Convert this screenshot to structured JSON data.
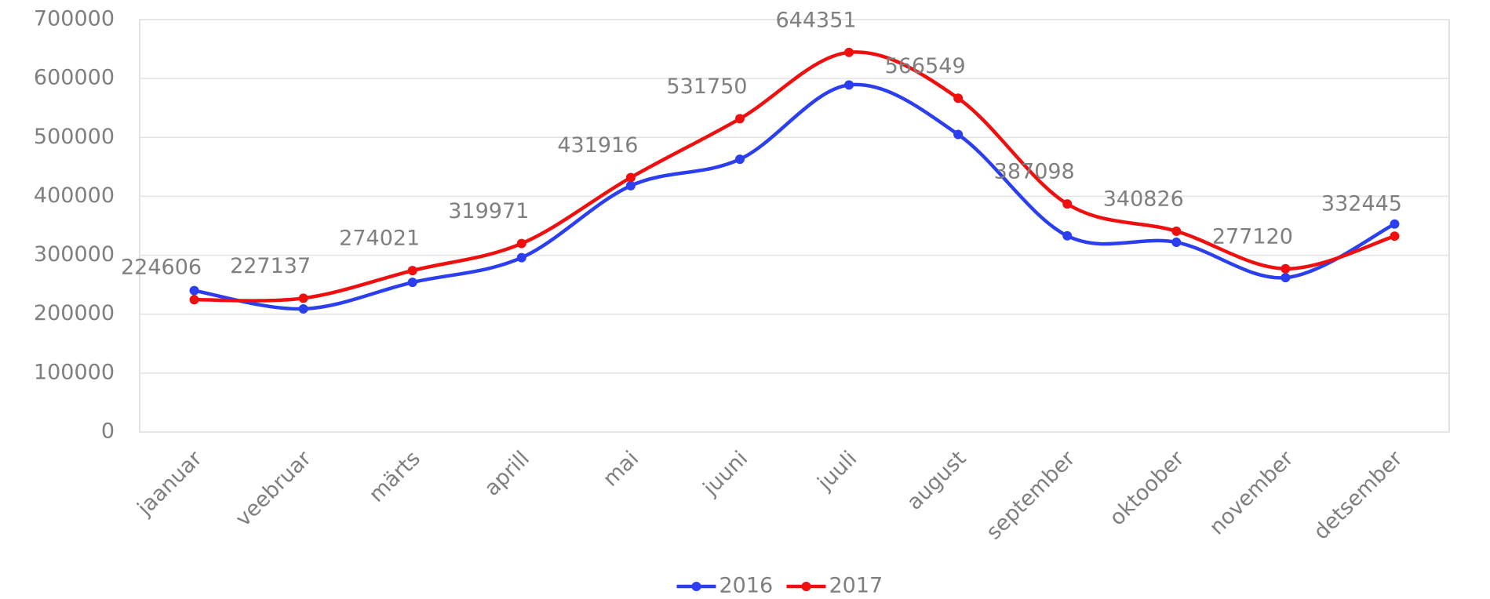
{
  "chart_data": {
    "type": "line",
    "categories": [
      "jaanuar",
      "veebruar",
      "märts",
      "aprill",
      "mai",
      "juuni",
      "juuli",
      "august",
      "september",
      "oktoober",
      "november",
      "detsember"
    ],
    "series": [
      {
        "name": "2016",
        "color": "#2b3ff0",
        "values": [
          240000,
          209000,
          254000,
          296000,
          418000,
          463000,
          589000,
          505000,
          333000,
          322000,
          262000,
          353000
        ]
      },
      {
        "name": "2017",
        "color": "#f00f0f",
        "values": [
          224606,
          227137,
          274021,
          319971,
          431916,
          531750,
          644351,
          566549,
          387098,
          340826,
          277120,
          332445
        ],
        "data_labels": true
      }
    ],
    "ylim": [
      0,
      700000
    ],
    "yticks": [
      0,
      100000,
      200000,
      300000,
      400000,
      500000,
      600000,
      700000
    ],
    "grid": true,
    "legend": "bottom",
    "smooth": true
  }
}
